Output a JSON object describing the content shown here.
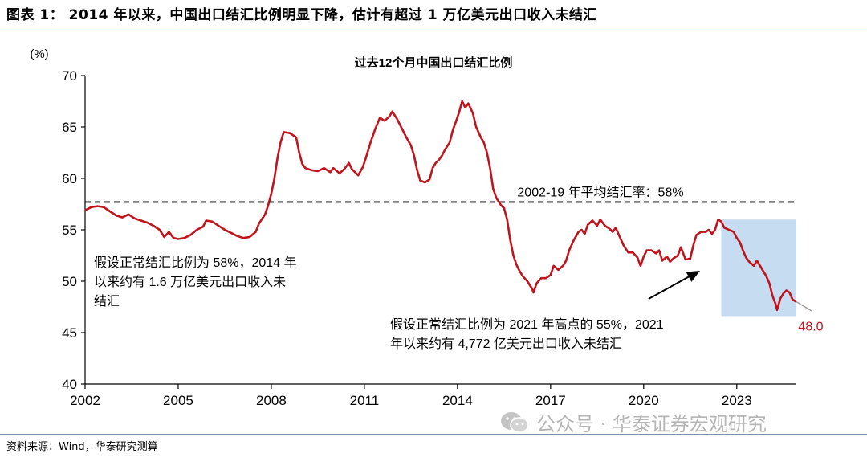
{
  "figure_title": "图表 1：  2014 年以来，中国出口结汇比例明显下降，估计有超过 1 万亿美元出口收入未结汇",
  "source": "资料来源：Wind，华泰研究测算",
  "watermark": {
    "text": "公众号 · 华泰证券宏观研究",
    "icon": "wechat-icon"
  },
  "colors": {
    "line": "#c0141c",
    "shade": "#c6dcf0",
    "avg_line": "#000000",
    "end_label": "#c0141c"
  },
  "chart_data": {
    "type": "line",
    "title": "过去12个月中国出口结汇比例",
    "ylabel": "(%)",
    "ylim": [
      40,
      70
    ],
    "yticks": [
      40,
      45,
      50,
      55,
      60,
      65,
      70
    ],
    "xlim": [
      2002,
      2024.92
    ],
    "xticks": [
      2002,
      2005,
      2008,
      2011,
      2014,
      2017,
      2020,
      2023
    ],
    "grid": false,
    "series": [
      {
        "points": [
          [
            2002.0,
            56.9
          ],
          [
            2002.2,
            57.2
          ],
          [
            2002.4,
            57.3
          ],
          [
            2002.6,
            57.2
          ],
          [
            2002.8,
            56.8
          ],
          [
            2003.0,
            56.4
          ],
          [
            2003.2,
            56.2
          ],
          [
            2003.4,
            56.5
          ],
          [
            2003.6,
            56.1
          ],
          [
            2003.8,
            55.9
          ],
          [
            2004.0,
            55.7
          ],
          [
            2004.2,
            55.4
          ],
          [
            2004.4,
            55.0
          ],
          [
            2004.55,
            54.3
          ],
          [
            2004.7,
            54.8
          ],
          [
            2004.85,
            54.2
          ],
          [
            2005.0,
            54.1
          ],
          [
            2005.2,
            54.2
          ],
          [
            2005.4,
            54.5
          ],
          [
            2005.6,
            55.0
          ],
          [
            2005.8,
            55.3
          ],
          [
            2005.9,
            55.9
          ],
          [
            2006.1,
            55.8
          ],
          [
            2006.3,
            55.4
          ],
          [
            2006.5,
            55.0
          ],
          [
            2006.7,
            54.7
          ],
          [
            2006.9,
            54.4
          ],
          [
            2007.1,
            54.2
          ],
          [
            2007.3,
            54.3
          ],
          [
            2007.5,
            54.8
          ],
          [
            2007.6,
            55.6
          ],
          [
            2007.8,
            56.5
          ],
          [
            2007.9,
            57.4
          ],
          [
            2008.0,
            58.5
          ],
          [
            2008.1,
            60.0
          ],
          [
            2008.2,
            62.0
          ],
          [
            2008.3,
            63.5
          ],
          [
            2008.4,
            64.5
          ],
          [
            2008.6,
            64.4
          ],
          [
            2008.8,
            64.0
          ],
          [
            2008.9,
            62.5
          ],
          [
            2009.0,
            61.4
          ],
          [
            2009.1,
            61.0
          ],
          [
            2009.3,
            60.8
          ],
          [
            2009.5,
            60.7
          ],
          [
            2009.7,
            61.0
          ],
          [
            2009.9,
            60.6
          ],
          [
            2010.0,
            61.0
          ],
          [
            2010.2,
            60.5
          ],
          [
            2010.35,
            60.9
          ],
          [
            2010.5,
            61.5
          ],
          [
            2010.6,
            60.9
          ],
          [
            2010.8,
            60.3
          ],
          [
            2010.95,
            61.1
          ],
          [
            2011.05,
            62.0
          ],
          [
            2011.2,
            63.5
          ],
          [
            2011.35,
            64.8
          ],
          [
            2011.5,
            65.9
          ],
          [
            2011.65,
            65.6
          ],
          [
            2011.8,
            66.0
          ],
          [
            2011.9,
            66.5
          ],
          [
            2012.05,
            65.8
          ],
          [
            2012.2,
            64.9
          ],
          [
            2012.35,
            64.0
          ],
          [
            2012.5,
            63.2
          ],
          [
            2012.6,
            62.2
          ],
          [
            2012.7,
            60.8
          ],
          [
            2012.8,
            59.8
          ],
          [
            2012.95,
            59.6
          ],
          [
            2013.1,
            59.9
          ],
          [
            2013.2,
            61.0
          ],
          [
            2013.3,
            61.5
          ],
          [
            2013.4,
            61.8
          ],
          [
            2013.5,
            62.2
          ],
          [
            2013.6,
            62.8
          ],
          [
            2013.75,
            63.5
          ],
          [
            2013.85,
            64.7
          ],
          [
            2013.95,
            65.5
          ],
          [
            2014.05,
            66.4
          ],
          [
            2014.15,
            67.5
          ],
          [
            2014.25,
            66.9
          ],
          [
            2014.35,
            67.3
          ],
          [
            2014.5,
            66.3
          ],
          [
            2014.6,
            65.0
          ],
          [
            2014.75,
            64.0
          ],
          [
            2014.85,
            63.5
          ],
          [
            2014.95,
            62.5
          ],
          [
            2015.05,
            61.0
          ],
          [
            2015.15,
            59.0
          ],
          [
            2015.25,
            58.1
          ],
          [
            2015.4,
            57.4
          ],
          [
            2015.5,
            57.1
          ],
          [
            2015.6,
            56.0
          ],
          [
            2015.7,
            54.0
          ],
          [
            2015.8,
            52.5
          ],
          [
            2015.9,
            51.6
          ],
          [
            2016.0,
            51.0
          ],
          [
            2016.1,
            50.5
          ],
          [
            2016.25,
            50.0
          ],
          [
            2016.4,
            49.3
          ],
          [
            2016.45,
            48.9
          ],
          [
            2016.55,
            49.8
          ],
          [
            2016.7,
            50.3
          ],
          [
            2016.85,
            50.3
          ],
          [
            2017.0,
            50.6
          ],
          [
            2017.1,
            51.5
          ],
          [
            2017.25,
            51.1
          ],
          [
            2017.4,
            51.5
          ],
          [
            2017.5,
            52.0
          ],
          [
            2017.6,
            53.0
          ],
          [
            2017.75,
            54.0
          ],
          [
            2017.9,
            54.8
          ],
          [
            2018.0,
            55.0
          ],
          [
            2018.1,
            54.6
          ],
          [
            2018.2,
            55.5
          ],
          [
            2018.35,
            55.9
          ],
          [
            2018.5,
            55.4
          ],
          [
            2018.6,
            56.0
          ],
          [
            2018.75,
            55.4
          ],
          [
            2018.9,
            55.1
          ],
          [
            2019.0,
            54.8
          ],
          [
            2019.1,
            55.2
          ],
          [
            2019.2,
            54.5
          ],
          [
            2019.35,
            53.5
          ],
          [
            2019.5,
            52.8
          ],
          [
            2019.65,
            52.8
          ],
          [
            2019.8,
            52.3
          ],
          [
            2019.9,
            51.5
          ],
          [
            2020.0,
            52.4
          ],
          [
            2020.1,
            53.0
          ],
          [
            2020.25,
            53.0
          ],
          [
            2020.4,
            52.7
          ],
          [
            2020.5,
            53.0
          ],
          [
            2020.6,
            52.0
          ],
          [
            2020.75,
            52.4
          ],
          [
            2020.85,
            51.9
          ],
          [
            2020.95,
            52.2
          ],
          [
            2021.1,
            52.5
          ],
          [
            2021.2,
            53.3
          ],
          [
            2021.35,
            52.1
          ],
          [
            2021.5,
            52.2
          ],
          [
            2021.6,
            53.5
          ],
          [
            2021.7,
            54.5
          ],
          [
            2021.85,
            54.8
          ],
          [
            2022.0,
            54.8
          ],
          [
            2022.1,
            55.0
          ],
          [
            2022.2,
            54.6
          ],
          [
            2022.3,
            55.0
          ],
          [
            2022.4,
            56.0
          ],
          [
            2022.5,
            55.8
          ],
          [
            2022.6,
            55.2
          ],
          [
            2022.75,
            55.0
          ],
          [
            2022.9,
            54.8
          ],
          [
            2023.0,
            54.2
          ],
          [
            2023.1,
            53.8
          ],
          [
            2023.2,
            53.0
          ],
          [
            2023.3,
            52.3
          ],
          [
            2023.4,
            51.9
          ],
          [
            2023.55,
            51.5
          ],
          [
            2023.65,
            52.0
          ],
          [
            2023.75,
            51.5
          ],
          [
            2023.85,
            51.0
          ],
          [
            2023.95,
            50.5
          ],
          [
            2024.05,
            49.8
          ],
          [
            2024.15,
            48.6
          ],
          [
            2024.25,
            47.8
          ],
          [
            2024.3,
            47.2
          ],
          [
            2024.4,
            48.3
          ],
          [
            2024.5,
            48.8
          ],
          [
            2024.6,
            49.1
          ],
          [
            2024.7,
            48.9
          ],
          [
            2024.8,
            48.2
          ],
          [
            2024.92,
            48.0
          ]
        ]
      }
    ],
    "average_line": {
      "value": 57.7,
      "label": "2002-19 年平均结汇率：58%"
    },
    "shaded_period": {
      "x": [
        2022.5,
        2024.92
      ],
      "y": [
        46.6,
        56.0
      ]
    },
    "end_label": "48.0",
    "annotations": [
      {
        "text_lines": [
          "假设正常结汇比例为 58%，2014 年",
          "以来约有 1.6 万亿美元出口收入未",
          "结汇"
        ]
      },
      {
        "text_lines": [
          "假设正常结汇比例为 2021 年高点的 55%，2021",
          "年以来约有 4,772 亿美元出口收入未结汇"
        ]
      }
    ]
  }
}
